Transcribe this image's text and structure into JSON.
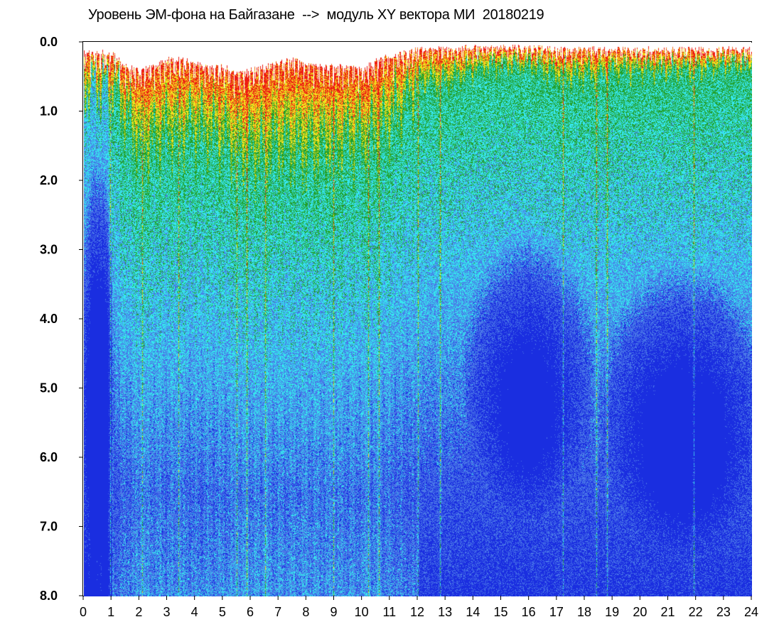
{
  "chart_data": {
    "type": "heatmap",
    "title": "Уровень ЭМ-фона на Байгазане  -->  модуль XY вектора МИ  20180219",
    "xlabel": "",
    "ylabel": "",
    "xlim": [
      0,
      24
    ],
    "ylim": [
      0.0,
      8.0
    ],
    "y_inverted": true,
    "x_tick_labels": [
      "0",
      "1",
      "2",
      "3",
      "4",
      "5",
      "6",
      "7",
      "8",
      "9",
      "10",
      "11",
      "12",
      "13",
      "14",
      "15",
      "16",
      "17",
      "18",
      "19",
      "20",
      "21",
      "22",
      "23",
      "24"
    ],
    "y_tick_labels": [
      "0.0",
      "1.0",
      "2.0",
      "3.0",
      "4.0",
      "5.0",
      "6.0",
      "7.0",
      "8.0"
    ],
    "color_scale": [
      "#1a2ee0",
      "#4a78e8",
      "#36e6ee",
      "#22a02a",
      "#f2e21e",
      "#ee1c14"
    ],
    "upper_boundary_by_hour": [
      {
        "x": 0.0,
        "y": 0.1
      },
      {
        "x": 0.5,
        "y": 0.1
      },
      {
        "x": 1.0,
        "y": 0.1
      },
      {
        "x": 1.5,
        "y": 0.3
      },
      {
        "x": 2.0,
        "y": 0.35
      },
      {
        "x": 2.5,
        "y": 0.3
      },
      {
        "x": 3.0,
        "y": 0.2
      },
      {
        "x": 3.5,
        "y": 0.2
      },
      {
        "x": 4.0,
        "y": 0.25
      },
      {
        "x": 4.5,
        "y": 0.3
      },
      {
        "x": 5.0,
        "y": 0.3
      },
      {
        "x": 5.5,
        "y": 0.4
      },
      {
        "x": 6.0,
        "y": 0.35
      },
      {
        "x": 6.5,
        "y": 0.3
      },
      {
        "x": 7.0,
        "y": 0.25
      },
      {
        "x": 7.5,
        "y": 0.2
      },
      {
        "x": 8.0,
        "y": 0.25
      },
      {
        "x": 8.5,
        "y": 0.3
      },
      {
        "x": 9.0,
        "y": 0.3
      },
      {
        "x": 9.5,
        "y": 0.3
      },
      {
        "x": 10.0,
        "y": 0.35
      },
      {
        "x": 10.5,
        "y": 0.2
      },
      {
        "x": 11.0,
        "y": 0.15
      },
      {
        "x": 11.5,
        "y": 0.1
      },
      {
        "x": 12.0,
        "y": 0.05
      },
      {
        "x": 13.0,
        "y": 0.05
      },
      {
        "x": 14.0,
        "y": 0.02
      },
      {
        "x": 15.0,
        "y": 0.02
      },
      {
        "x": 16.0,
        "y": 0.02
      },
      {
        "x": 17.0,
        "y": 0.05
      },
      {
        "x": 18.0,
        "y": 0.05
      },
      {
        "x": 19.0,
        "y": 0.05
      },
      {
        "x": 20.0,
        "y": 0.05
      },
      {
        "x": 21.0,
        "y": 0.05
      },
      {
        "x": 22.0,
        "y": 0.05
      },
      {
        "x": 23.0,
        "y": 0.05
      },
      {
        "x": 24.0,
        "y": 0.05
      }
    ],
    "warm_band_lower_edge_by_hour": [
      {
        "x": 0.0,
        "y": 0.6
      },
      {
        "x": 1.0,
        "y": 0.6
      },
      {
        "x": 2.0,
        "y": 1.6
      },
      {
        "x": 3.0,
        "y": 1.4
      },
      {
        "x": 4.0,
        "y": 1.3
      },
      {
        "x": 5.0,
        "y": 1.5
      },
      {
        "x": 6.0,
        "y": 1.7
      },
      {
        "x": 7.0,
        "y": 1.6
      },
      {
        "x": 8.0,
        "y": 1.7
      },
      {
        "x": 9.0,
        "y": 1.6
      },
      {
        "x": 10.0,
        "y": 1.5
      },
      {
        "x": 11.0,
        "y": 1.2
      },
      {
        "x": 12.0,
        "y": 0.6
      },
      {
        "x": 13.0,
        "y": 0.6
      },
      {
        "x": 14.0,
        "y": 0.4
      },
      {
        "x": 15.0,
        "y": 0.3
      },
      {
        "x": 16.0,
        "y": 0.3
      },
      {
        "x": 17.0,
        "y": 0.5
      },
      {
        "x": 18.0,
        "y": 0.5
      },
      {
        "x": 19.0,
        "y": 0.4
      },
      {
        "x": 20.0,
        "y": 0.4
      },
      {
        "x": 21.0,
        "y": 0.4
      },
      {
        "x": 22.0,
        "y": 0.4
      },
      {
        "x": 23.0,
        "y": 0.3
      },
      {
        "x": 24.0,
        "y": 0.3
      }
    ],
    "low_intensity_regions": [
      {
        "x_range": [
          14.0,
          18.0
        ],
        "y_range": [
          3.0,
          6.5
        ]
      },
      {
        "x_range": [
          19.0,
          24.0
        ],
        "y_range": [
          3.5,
          7.0
        ]
      },
      {
        "x_range": [
          0.0,
          1.0
        ],
        "y_range": [
          2.0,
          7.0
        ]
      }
    ],
    "vertical_streaks_hours": [
      0.95,
      2.1,
      3.4,
      5.5,
      5.85,
      6.5,
      8.95,
      10.2,
      10.6,
      12.0,
      12.8,
      17.2,
      18.4,
      18.8,
      21.9
    ]
  }
}
